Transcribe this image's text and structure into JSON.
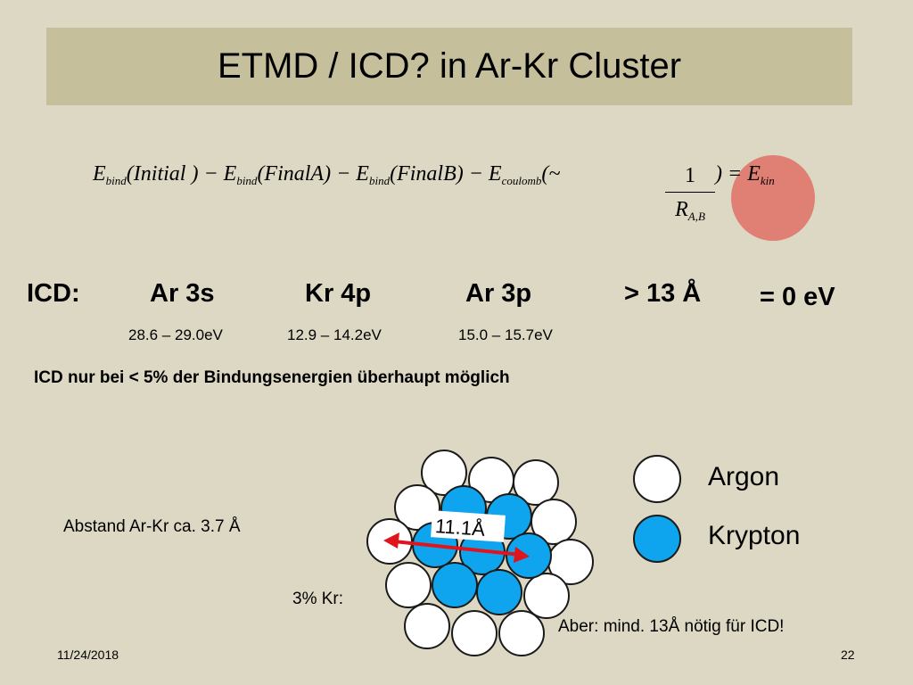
{
  "slide": {
    "title": "ETMD / ICD? in Ar-Kr Cluster",
    "formula": {
      "t1": "E",
      "sub_bind": "bind",
      "arg1": "(Initial ) − ",
      "t2": "E",
      "arg2": "(FinalA) − ",
      "t3": "E",
      "arg3": "(FinalB) − ",
      "t4": "E",
      "sub_coulomb": "coulomb",
      "arg4": "(~",
      "frac_num": "1",
      "frac_den_main": "R",
      "frac_den_sub": "A,B",
      "close": ") = ",
      "t5": "E",
      "sub_kin": "kin"
    },
    "icd_row": {
      "label": "ICD:",
      "ar3s": "Ar 3s",
      "kr4p": "Kr 4p",
      "ar3p": "Ar 3p",
      "distance": "> 13 Å",
      "result": "= 0 eV"
    },
    "energies": {
      "ar3s": "28.6 – 29.0eV",
      "kr4p": "12.9 – 14.2eV",
      "ar3p": "15.0 – 15.7eV"
    },
    "note": "ICD nur bei < 5% der Bindungsenergien überhaupt möglich",
    "distance_text": "Abstand Ar-Kr ca. 3.7 Å",
    "kr_fraction": "3% Kr:",
    "arrow_label": "11.1Å",
    "legend": {
      "argon": "Argon",
      "krypton": "Krypton"
    },
    "conclusion": "Aber: mind. 13Å nötig für ICD!",
    "footer": {
      "date": "11/24/2018",
      "page": "22"
    },
    "colors": {
      "background": "#ddd8c4",
      "title_bar": "#c5bf9c",
      "krypton": "#0ea5ee",
      "highlight": "#e07f73",
      "arrow": "#e0141c"
    }
  }
}
